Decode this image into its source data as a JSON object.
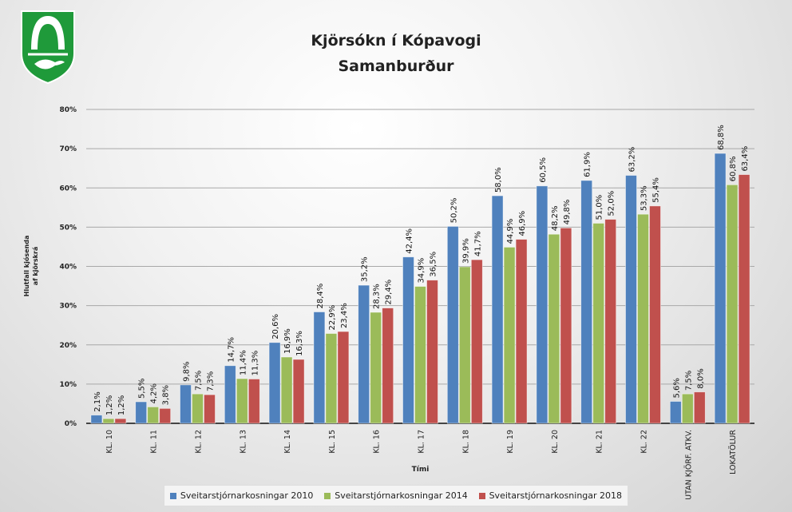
{
  "title_line1": "Kjörsókn  í Kópavogi",
  "title_line2": "Samanburður",
  "chart_data": {
    "type": "bar",
    "title": "Kjörsókn  í Kópavogi — Samanburður",
    "xlabel": "Tími",
    "ylabel": "Hlutfall kjósenda af kjörskrá",
    "ylim": [
      0,
      80
    ],
    "yticks": [
      "0%",
      "10%",
      "20%",
      "30%",
      "40%",
      "50%",
      "60%",
      "70%",
      "80%"
    ],
    "grid": true,
    "legend_position": "bottom",
    "categories": [
      "KL. 10",
      "KL. 11",
      "KL. 12",
      "KL. 13",
      "KL. 14",
      "KL. 15",
      "KL. 16",
      "KL. 17",
      "KL. 18",
      "KL. 19",
      "KL. 20",
      "KL. 21",
      "KL. 22",
      "UTAN KJÖRF. ATKV.",
      "LOKATÖLUR"
    ],
    "series": [
      {
        "name": "Sveitarstjórnarkosningar 2010",
        "color": "#4f81bd",
        "values": [
          2.1,
          5.5,
          9.8,
          14.7,
          20.6,
          28.4,
          35.2,
          42.4,
          50.2,
          58.0,
          60.5,
          61.9,
          63.2,
          5.6,
          68.8
        ]
      },
      {
        "name": "Sveitarstjórnarkosningar 2014",
        "color": "#9bbb59",
        "values": [
          1.2,
          4.2,
          7.5,
          11.4,
          16.9,
          22.9,
          28.3,
          34.9,
          39.9,
          44.9,
          48.2,
          51.0,
          53.3,
          7.5,
          60.8
        ]
      },
      {
        "name": "Sveitarstjórnarkosningar 2018",
        "color": "#c0504d",
        "values": [
          1.2,
          3.8,
          7.3,
          11.3,
          16.3,
          23.4,
          29.4,
          36.5,
          41.7,
          46.9,
          49.8,
          52.0,
          55.4,
          8.0,
          63.4
        ]
      }
    ]
  }
}
